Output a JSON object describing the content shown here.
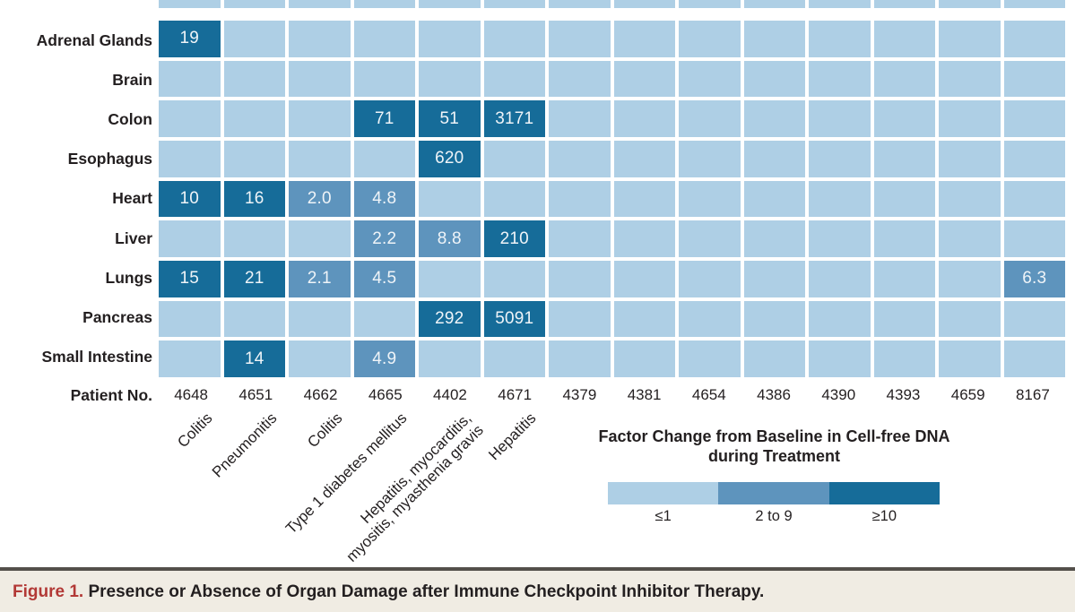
{
  "colors": {
    "low": "#AECFE5",
    "mid": "#5E94BD",
    "high": "#166C99",
    "value_text": "#EFF4F8",
    "label_dark": "#231F20",
    "caption_bg": "#F0ECE3",
    "figure_red": "#B23936",
    "rule_gray": "#54504B"
  },
  "chart_data": {
    "type": "heatmap",
    "title": "Presence or Absence of Organ Damage after Immune Checkpoint Inhibitor Therapy",
    "rows": [
      "Adrenal Glands",
      "Brain",
      "Colon",
      "Esophagus",
      "Heart",
      "Liver",
      "Lungs",
      "Pancreas",
      "Small Intestine"
    ],
    "row_axis_label": "Patient No.",
    "columns": [
      "4648",
      "4651",
      "4662",
      "4665",
      "4402",
      "4671",
      "4379",
      "4381",
      "4654",
      "4386",
      "4390",
      "4393",
      "4659",
      "8167"
    ],
    "column_diagnoses": [
      [
        "Colitis"
      ],
      [
        "Pneumonitis"
      ],
      [
        "Colitis"
      ],
      [
        "Type 1 diabetes mellitus"
      ],
      [
        "Hepatitis, myocarditis,",
        "myositis, myasthenia gravis"
      ],
      [
        "Hepatitis"
      ],
      [],
      [],
      [],
      [],
      [],
      [],
      [],
      []
    ],
    "cells": [
      {
        "row": 0,
        "col": 0,
        "value": "19",
        "level": "high"
      },
      {
        "row": 2,
        "col": 3,
        "value": "71",
        "level": "high"
      },
      {
        "row": 2,
        "col": 4,
        "value": "51",
        "level": "high"
      },
      {
        "row": 2,
        "col": 5,
        "value": "3171",
        "level": "high"
      },
      {
        "row": 3,
        "col": 4,
        "value": "620",
        "level": "high"
      },
      {
        "row": 4,
        "col": 0,
        "value": "10",
        "level": "high"
      },
      {
        "row": 4,
        "col": 1,
        "value": "16",
        "level": "high"
      },
      {
        "row": 4,
        "col": 2,
        "value": "2.0",
        "level": "mid"
      },
      {
        "row": 4,
        "col": 3,
        "value": "4.8",
        "level": "mid"
      },
      {
        "row": 5,
        "col": 3,
        "value": "2.2",
        "level": "mid"
      },
      {
        "row": 5,
        "col": 4,
        "value": "8.8",
        "level": "mid"
      },
      {
        "row": 5,
        "col": 5,
        "value": "210",
        "level": "high"
      },
      {
        "row": 6,
        "col": 0,
        "value": "15",
        "level": "high"
      },
      {
        "row": 6,
        "col": 1,
        "value": "21",
        "level": "high"
      },
      {
        "row": 6,
        "col": 2,
        "value": "2.1",
        "level": "mid"
      },
      {
        "row": 6,
        "col": 3,
        "value": "4.5",
        "level": "mid"
      },
      {
        "row": 6,
        "col": 13,
        "value": "6.3",
        "level": "mid"
      },
      {
        "row": 7,
        "col": 4,
        "value": "292",
        "level": "high"
      },
      {
        "row": 7,
        "col": 5,
        "value": "5091",
        "level": "high"
      },
      {
        "row": 8,
        "col": 1,
        "value": "14",
        "level": "high"
      },
      {
        "row": 8,
        "col": 3,
        "value": "4.9",
        "level": "mid"
      }
    ],
    "default_level": "low",
    "legend": {
      "title_line1": "Factor Change from Baseline in Cell-free DNA",
      "title_line2": "during Treatment",
      "bins": [
        {
          "label": "≤1",
          "level": "low"
        },
        {
          "label": "2 to 9",
          "level": "mid"
        },
        {
          "label": "≥10",
          "level": "high"
        }
      ],
      "position": "bottom-right"
    }
  },
  "caption": {
    "label": "Figure 1.",
    "text": " Presence or Absence of Organ Damage after Immune Checkpoint Inhibitor Therapy."
  }
}
